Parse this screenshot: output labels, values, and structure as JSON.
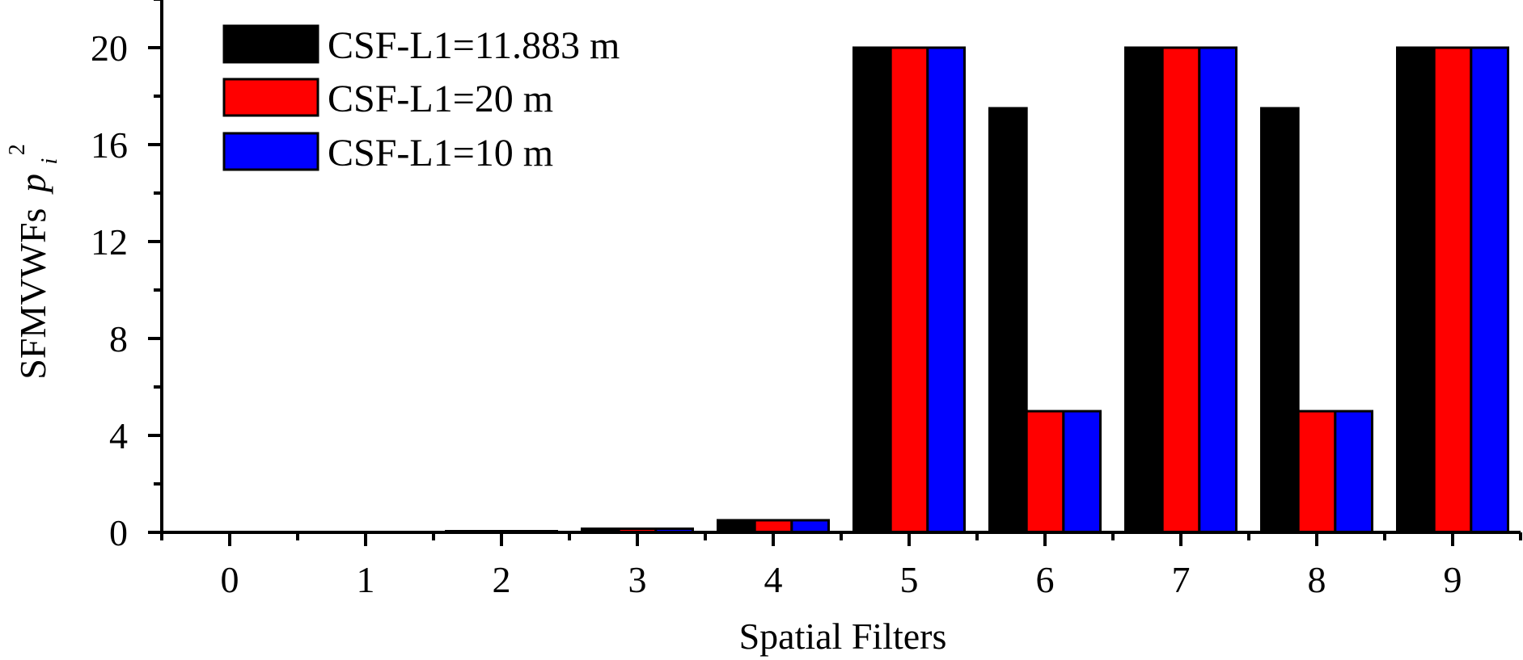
{
  "chart_data": {
    "type": "bar",
    "title": "",
    "xlabel": "Spatial Filters",
    "ylabel": "SFMVWFs",
    "ylabel_math": {
      "base": "p",
      "subscript": "i",
      "superscript": "2"
    },
    "categories": [
      "0",
      "1",
      "2",
      "3",
      "4",
      "5",
      "6",
      "7",
      "8",
      "9"
    ],
    "series": [
      {
        "name": "CSF-L1=11.883 m",
        "color": "#000000",
        "values": [
          0,
          0,
          0.05,
          0.15,
          0.5,
          20,
          17.5,
          20,
          17.5,
          20
        ]
      },
      {
        "name": "CSF-L1=20 m",
        "color": "#ff0000",
        "values": [
          0,
          0,
          0.05,
          0.15,
          0.5,
          20,
          5,
          20,
          5,
          20
        ]
      },
      {
        "name": "CSF-L1=10 m",
        "color": "#0000ff",
        "values": [
          0,
          0,
          0.05,
          0.15,
          0.5,
          20,
          5,
          20,
          5,
          20
        ]
      }
    ],
    "ylim": [
      0,
      22
    ],
    "xlim": [
      -0.5,
      9.5
    ],
    "yticks": [
      0,
      4,
      8,
      12,
      16,
      20
    ],
    "yminor_ticks": [
      2,
      6,
      10,
      14,
      18,
      22
    ],
    "xticks": [
      0,
      1,
      2,
      3,
      4,
      5,
      6,
      7,
      8,
      9
    ],
    "grid": false,
    "legend_position": "upper-left"
  },
  "labels": {
    "xlabel": "Spatial Filters",
    "ylabel_text": "SFMVWFs",
    "ylabel_base": "p",
    "ylabel_sub": "i",
    "ylabel_sup": "2"
  }
}
